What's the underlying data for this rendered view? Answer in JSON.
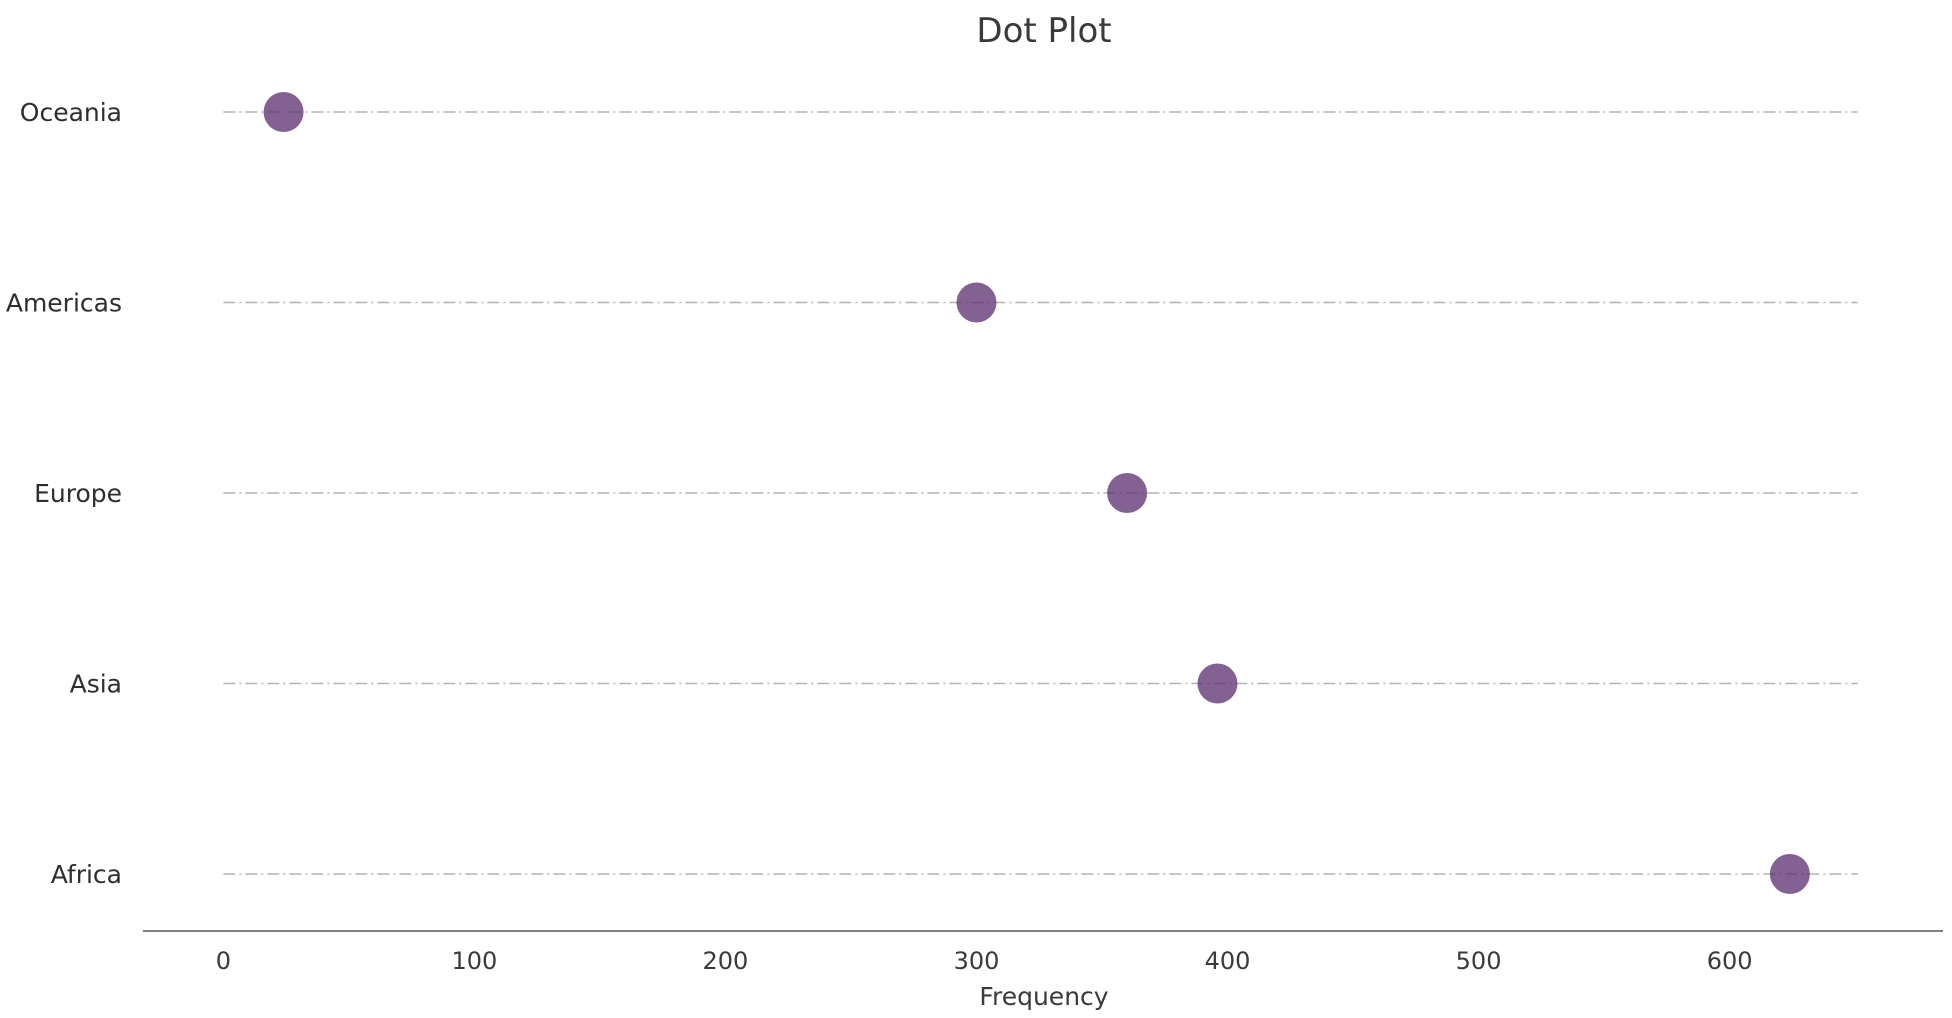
{
  "chart_data": {
    "type": "scatter",
    "title": "Dot Plot",
    "xlabel": "Frequency",
    "ylabel": "",
    "categories": [
      "Oceania",
      "Americas",
      "Europe",
      "Asia",
      "Africa"
    ],
    "values": [
      24,
      300,
      360,
      396,
      624
    ],
    "x_ticks": [
      0,
      100,
      200,
      300,
      400,
      500,
      600
    ],
    "xlim": [
      -32,
      685
    ],
    "guide_range": [
      0,
      651
    ],
    "grid": false,
    "dot_color": "#5b2c6f",
    "guide_color": "#b3b3b3"
  }
}
